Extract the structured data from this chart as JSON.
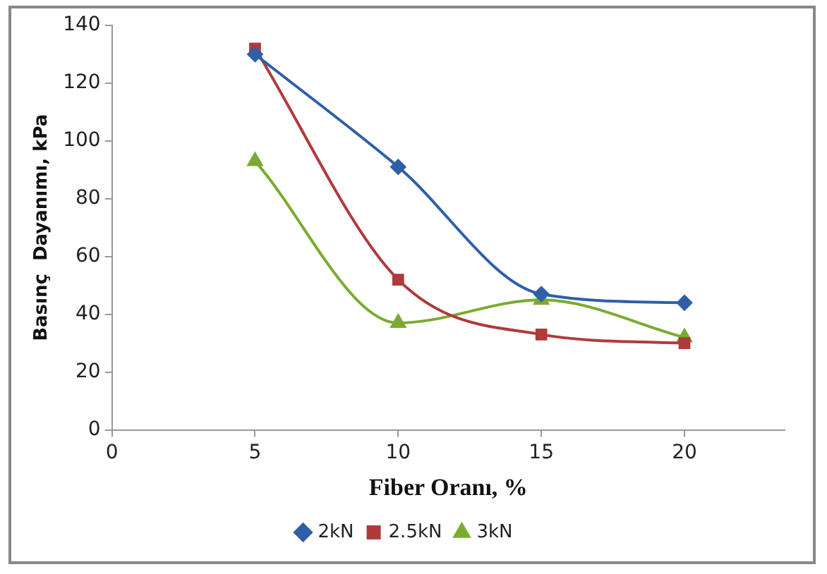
{
  "chart_data": {
    "type": "line",
    "xlabel": "Fiber Oranı, %",
    "ylabel": "Basınç  Dayanımı, kPa",
    "x": [
      5,
      10,
      15,
      20
    ],
    "xlim": [
      0,
      23.5
    ],
    "xticks": [
      0,
      5,
      10,
      15,
      20
    ],
    "ylim": [
      0,
      140
    ],
    "yticks": [
      0,
      20,
      40,
      60,
      80,
      100,
      120,
      140
    ],
    "grid": false,
    "legend": "bottom",
    "series": [
      {
        "name": "2kN",
        "color": "#2e5fa8",
        "marker": "diamond",
        "values": [
          130,
          91,
          47,
          44
        ]
      },
      {
        "name": "2.5kN",
        "color": "#b03a3a",
        "marker": "square",
        "values": [
          132,
          52,
          33,
          30
        ]
      },
      {
        "name": "3kN",
        "color": "#7aab2f",
        "marker": "triangle",
        "values": [
          93,
          37,
          45,
          32
        ]
      }
    ]
  }
}
